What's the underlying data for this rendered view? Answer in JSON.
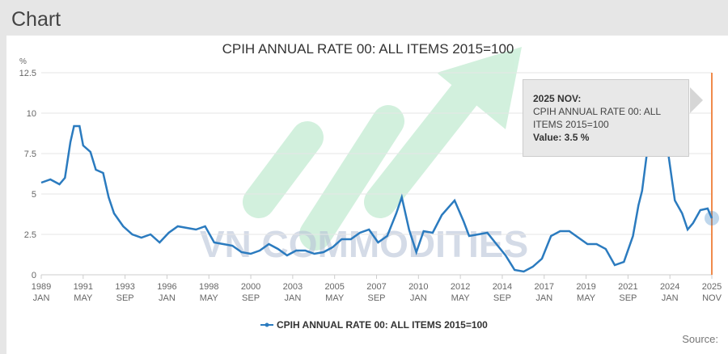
{
  "header": {
    "title": "Chart"
  },
  "tooltip": {
    "date": "2025 NOV:",
    "series": "CPIH ANNUAL RATE 00: ALL ITEMS 2015=100",
    "value": "Value: 3.5 %"
  },
  "watermark": "VN COMMODITIES",
  "source_label": "Source:",
  "colors": {
    "line": "#2b7bbf",
    "cursor": "#f08a4b",
    "watermark": "#7fd6a0"
  },
  "chart_data": {
    "type": "line",
    "title": "CPIH ANNUAL RATE 00: ALL ITEMS 2015=100",
    "ylabel": "%",
    "ylim": [
      0,
      12.5
    ],
    "yticks": [
      "0",
      "2.5",
      "5",
      "7.5",
      "10",
      "12.5"
    ],
    "xlim": [
      1989.0,
      2025.83
    ],
    "xticks": [
      {
        "year": "1989",
        "month": "JAN"
      },
      {
        "year": "1991",
        "month": "MAY"
      },
      {
        "year": "1993",
        "month": "SEP"
      },
      {
        "year": "1996",
        "month": "JAN"
      },
      {
        "year": "1998",
        "month": "MAY"
      },
      {
        "year": "2000",
        "month": "SEP"
      },
      {
        "year": "2003",
        "month": "JAN"
      },
      {
        "year": "2005",
        "month": "MAY"
      },
      {
        "year": "2007",
        "month": "SEP"
      },
      {
        "year": "2010",
        "month": "JAN"
      },
      {
        "year": "2012",
        "month": "MAY"
      },
      {
        "year": "2014",
        "month": "SEP"
      },
      {
        "year": "2017",
        "month": "JAN"
      },
      {
        "year": "2019",
        "month": "MAY"
      },
      {
        "year": "2021",
        "month": "SEP"
      },
      {
        "year": "2024",
        "month": "JAN"
      },
      {
        "year": "2025",
        "month": "NOV"
      }
    ],
    "grid": true,
    "legend": "bottom",
    "series": [
      {
        "name": "CPIH ANNUAL RATE 00: ALL ITEMS 2015=100",
        "x": [
          1989.0,
          1989.5,
          1990.0,
          1990.3,
          1990.6,
          1990.8,
          1991.1,
          1991.3,
          1991.7,
          1992.0,
          1992.4,
          1992.7,
          1993.0,
          1993.5,
          1994.0,
          1994.5,
          1995.0,
          1995.5,
          1996.0,
          1996.5,
          1997.0,
          1997.5,
          1998.0,
          1998.5,
          1999.0,
          1999.5,
          2000.0,
          2000.5,
          2001.0,
          2001.5,
          2002.0,
          2002.5,
          2003.0,
          2003.5,
          2004.0,
          2004.5,
          2005.0,
          2005.5,
          2006.0,
          2006.5,
          2007.0,
          2007.5,
          2008.0,
          2008.5,
          2008.8,
          2009.2,
          2009.6,
          2010.0,
          2010.5,
          2011.0,
          2011.7,
          2012.2,
          2012.5,
          2013.0,
          2013.5,
          2014.0,
          2014.5,
          2015.0,
          2015.5,
          2016.0,
          2016.5,
          2017.0,
          2017.5,
          2018.0,
          2018.5,
          2019.0,
          2019.5,
          2020.0,
          2020.5,
          2021.0,
          2021.5,
          2021.8,
          2022.0,
          2022.3,
          2022.8,
          2023.0,
          2023.4,
          2023.8,
          2024.2,
          2024.5,
          2024.8,
          2025.2,
          2025.6,
          2025.83
        ],
        "values": [
          5.7,
          5.9,
          5.6,
          6.0,
          8.2,
          9.2,
          9.2,
          8.0,
          7.6,
          6.5,
          6.3,
          4.8,
          3.8,
          3.0,
          2.5,
          2.3,
          2.5,
          2.0,
          2.6,
          3.0,
          2.9,
          2.8,
          3.0,
          2.0,
          1.9,
          1.8,
          1.4,
          1.3,
          1.5,
          1.9,
          1.6,
          1.2,
          1.5,
          1.5,
          1.3,
          1.4,
          1.7,
          2.2,
          2.2,
          2.6,
          2.8,
          2.0,
          2.4,
          3.8,
          4.8,
          2.8,
          1.4,
          2.7,
          2.6,
          3.7,
          4.6,
          3.3,
          2.4,
          2.5,
          2.6,
          1.9,
          1.2,
          0.3,
          0.2,
          0.5,
          1.0,
          2.4,
          2.7,
          2.7,
          2.3,
          1.9,
          1.9,
          1.6,
          0.6,
          0.8,
          2.4,
          4.3,
          5.2,
          7.8,
          9.6,
          9.2,
          7.8,
          4.6,
          3.8,
          2.8,
          3.2,
          4.0,
          4.1,
          3.5
        ]
      }
    ]
  }
}
